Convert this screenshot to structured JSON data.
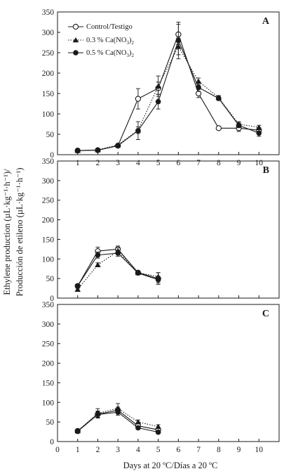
{
  "figure": {
    "ylabel_line1": "Ethylene production (µL·kg⁻¹·h⁻¹)/",
    "ylabel_line2": "Producción de etileno (µL·kg⁻¹·h⁻¹)",
    "xlabel": "Days at 20 ºC/Días a 20 ºC",
    "legend_placement": "top-left of panel A",
    "colors": {
      "line": "#1a1a1a",
      "open_marker": "#ffffff",
      "filled_marker": "#1a1a1a"
    }
  },
  "chart_data": [
    {
      "type": "line",
      "panel_label": "A",
      "x": [
        1,
        2,
        3,
        4,
        5,
        6,
        7,
        8,
        9,
        10
      ],
      "xlim": [
        0,
        11
      ],
      "ylim": [
        0,
        350
      ],
      "y_ticks": [
        0,
        50,
        100,
        150,
        200,
        250,
        300,
        350
      ],
      "x_ticks": [
        1,
        2,
        3,
        4,
        5,
        6,
        7,
        8,
        9,
        10
      ],
      "legend": true,
      "series": [
        {
          "name": "Control/Testigo",
          "marker": "open-circle",
          "line": "solid",
          "values": [
            10,
            11,
            22,
            137,
            163,
            295,
            150,
            65,
            65,
            60
          ],
          "errors": [
            2,
            2,
            3,
            25,
            15,
            25,
            10,
            3,
            8,
            6
          ]
        },
        {
          "name": "0.3 % Ca(NO3)2",
          "marker": "triangle",
          "line": "dotted",
          "values": [
            10,
            12,
            24,
            60,
            168,
            265,
            180,
            140,
            75,
            67
          ],
          "errors": [
            2,
            2,
            3,
            8,
            25,
            20,
            8,
            5,
            6,
            5
          ]
        },
        {
          "name": "0.5 % Ca(NO3)2",
          "marker": "filled-circle",
          "line": "solid",
          "values": [
            10,
            11,
            22,
            59,
            130,
            280,
            165,
            138,
            72,
            53
          ],
          "errors": [
            2,
            2,
            3,
            22,
            18,
            45,
            10,
            5,
            6,
            8
          ]
        }
      ]
    },
    {
      "type": "line",
      "panel_label": "B",
      "x": [
        1,
        2,
        3,
        4,
        5
      ],
      "xlim": [
        0,
        11
      ],
      "ylim": [
        0,
        350
      ],
      "y_ticks": [
        0,
        50,
        100,
        150,
        200,
        250,
        300,
        350
      ],
      "series": [
        {
          "name": "Control/Testigo",
          "marker": "open-circle",
          "line": "solid",
          "values": [
            31,
            120,
            125,
            65,
            50
          ],
          "errors": [
            3,
            10,
            8,
            4,
            15
          ]
        },
        {
          "name": "0.3 % Ca(NO3)2",
          "marker": "triangle",
          "line": "dotted",
          "values": [
            22,
            85,
            120,
            65,
            55
          ],
          "errors": [
            3,
            5,
            8,
            4,
            10
          ]
        },
        {
          "name": "0.5 % Ca(NO3)2",
          "marker": "filled-circle",
          "line": "solid",
          "values": [
            31,
            110,
            115,
            64,
            47
          ],
          "errors": [
            3,
            8,
            8,
            4,
            8
          ]
        }
      ]
    },
    {
      "type": "line",
      "panel_label": "C",
      "x": [
        1,
        2,
        3,
        4,
        5
      ],
      "xlim": [
        0,
        11
      ],
      "ylim": [
        0,
        350
      ],
      "y_ticks": [
        0,
        50,
        100,
        150,
        200,
        250,
        300,
        350
      ],
      "x_ticks": [
        0,
        1,
        2,
        3,
        4,
        5,
        6,
        7,
        8,
        9,
        10
      ],
      "series": [
        {
          "name": "Control/Testigo",
          "marker": "open-circle",
          "line": "solid",
          "values": [
            27,
            70,
            80,
            40,
            30
          ],
          "errors": [
            2,
            8,
            8,
            5,
            5
          ]
        },
        {
          "name": "0.3 % Ca(NO3)2",
          "marker": "triangle",
          "line": "dotted",
          "values": [
            27,
            72,
            85,
            50,
            38
          ],
          "errors": [
            2,
            12,
            12,
            5,
            5
          ]
        },
        {
          "name": "0.5 % Ca(NO3)2",
          "marker": "filled-circle",
          "line": "solid",
          "values": [
            26,
            69,
            75,
            35,
            24
          ],
          "errors": [
            2,
            8,
            8,
            4,
            4
          ]
        }
      ]
    }
  ]
}
